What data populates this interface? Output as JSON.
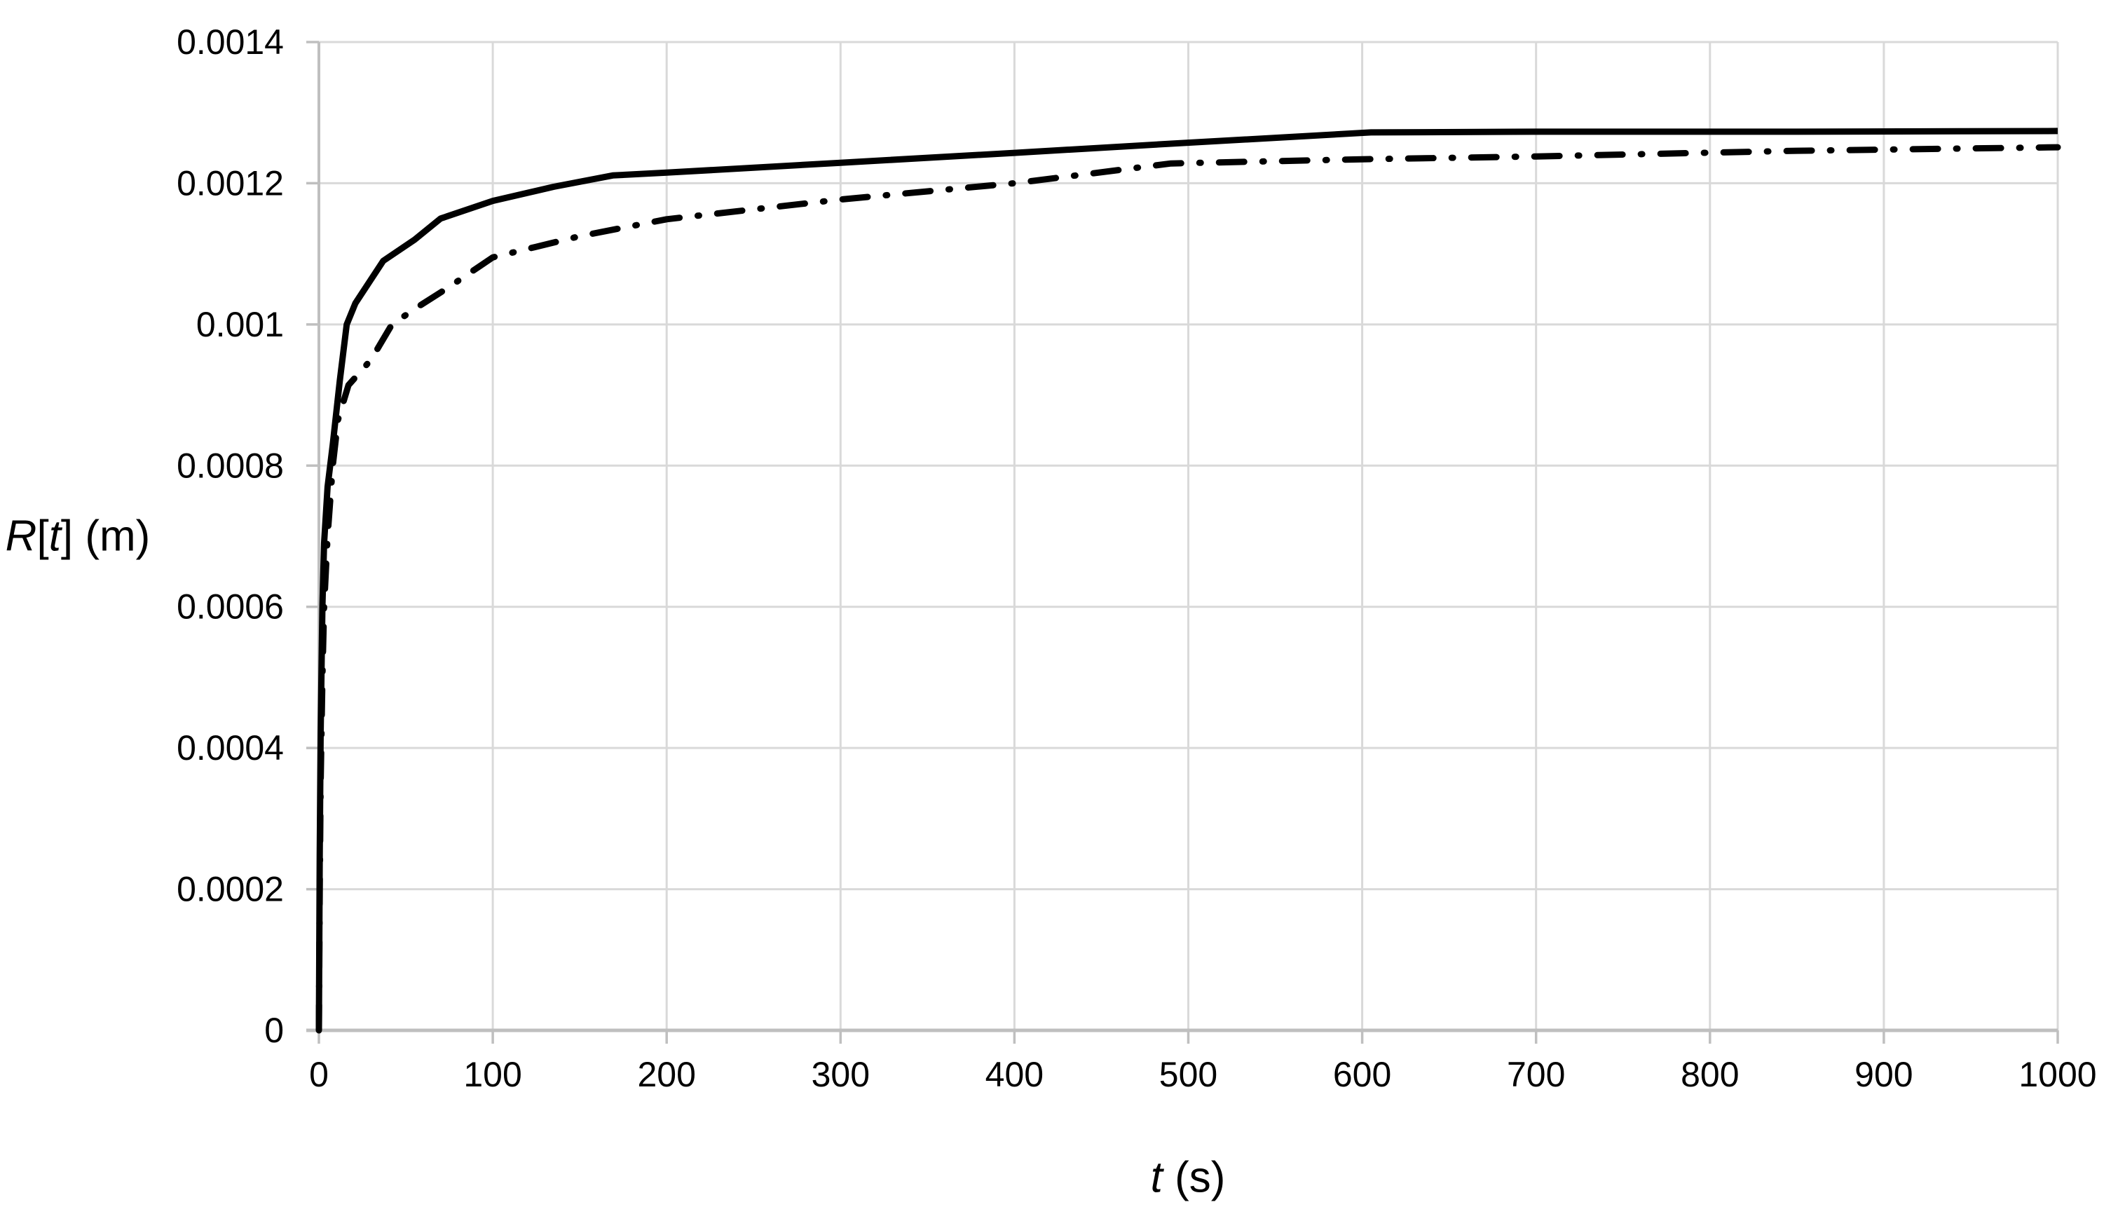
{
  "chart_data": {
    "type": "line",
    "title": "",
    "xlabel": "t (s)",
    "ylabel": "R[t] (m)",
    "xlabel_parts": [
      {
        "text": "t",
        "italic": true
      },
      {
        "text": " (s)",
        "italic": false
      }
    ],
    "ylabel_parts": [
      {
        "text": "R",
        "italic": true
      },
      {
        "text": "[",
        "italic": false
      },
      {
        "text": "t",
        "italic": true
      },
      {
        "text": "] (m)",
        "italic": false
      }
    ],
    "xlim": [
      0,
      1000
    ],
    "ylim": [
      0,
      0.0014
    ],
    "grid": true,
    "legend_position": "none",
    "x_ticks": [
      {
        "value": 0,
        "label": "0"
      },
      {
        "value": 100,
        "label": "100"
      },
      {
        "value": 200,
        "label": "200"
      },
      {
        "value": 300,
        "label": "300"
      },
      {
        "value": 400,
        "label": "400"
      },
      {
        "value": 500,
        "label": "500"
      },
      {
        "value": 600,
        "label": "600"
      },
      {
        "value": 700,
        "label": "700"
      },
      {
        "value": 800,
        "label": "800"
      },
      {
        "value": 900,
        "label": "900"
      },
      {
        "value": 1000,
        "label": "1000"
      }
    ],
    "y_ticks": [
      {
        "value": 0,
        "label": "0"
      },
      {
        "value": 0.0002,
        "label": "0.0002"
      },
      {
        "value": 0.0004,
        "label": "0.0004"
      },
      {
        "value": 0.0006,
        "label": "0.0006"
      },
      {
        "value": 0.0008,
        "label": "0.0008"
      },
      {
        "value": 0.001,
        "label": "0.001"
      },
      {
        "value": 0.0012,
        "label": "0.0012"
      },
      {
        "value": 0.0014,
        "label": "0.0014"
      }
    ],
    "series": [
      {
        "name": "solid-line",
        "style": "solid",
        "color": "#000000",
        "points": [
          [
            0,
            0
          ],
          [
            0.5,
            0.00025
          ],
          [
            1,
            0.00042
          ],
          [
            2,
            0.0006
          ],
          [
            3,
            0.00069
          ],
          [
            5,
            0.00077
          ],
          [
            8,
            0.00083
          ],
          [
            12,
            0.00092
          ],
          [
            16,
            0.001
          ],
          [
            21,
            0.00103
          ],
          [
            37,
            0.00109
          ],
          [
            55,
            0.00112
          ],
          [
            70,
            0.00115
          ],
          [
            100,
            0.001175
          ],
          [
            135,
            0.001195
          ],
          [
            169,
            0.001211
          ],
          [
            200,
            0.001215
          ],
          [
            300,
            0.001229
          ],
          [
            400,
            0.001243
          ],
          [
            490,
            0.001256
          ],
          [
            605,
            0.001272
          ],
          [
            700,
            0.001273
          ],
          [
            850,
            0.001273
          ],
          [
            1000,
            0.001274
          ]
        ]
      },
      {
        "name": "dash-dot-line",
        "style": "dash-dot",
        "color": "#000000",
        "points": [
          [
            0,
            0
          ],
          [
            0.5,
            0.0002
          ],
          [
            1,
            0.00035
          ],
          [
            2,
            0.0005
          ],
          [
            3,
            0.0006
          ],
          [
            5,
            0.0007
          ],
          [
            8,
            0.0008
          ],
          [
            11,
            0.000865
          ],
          [
            17,
            0.000914
          ],
          [
            30,
            0.00095
          ],
          [
            42,
            0.001
          ],
          [
            57,
            0.001025
          ],
          [
            73,
            0.00105
          ],
          [
            100,
            0.001095
          ],
          [
            150,
            0.001125
          ],
          [
            200,
            0.001149
          ],
          [
            300,
            0.001177
          ],
          [
            400,
            0.0012
          ],
          [
            490,
            0.001228
          ],
          [
            600,
            0.001234
          ],
          [
            700,
            0.001238
          ],
          [
            850,
            0.001246
          ],
          [
            1000,
            0.001251
          ]
        ]
      }
    ]
  },
  "colors": {
    "background": "#ffffff",
    "gridline": "#d9d9d9",
    "axis": "#bfbfbf",
    "line": "#000000",
    "text": "#000000"
  }
}
